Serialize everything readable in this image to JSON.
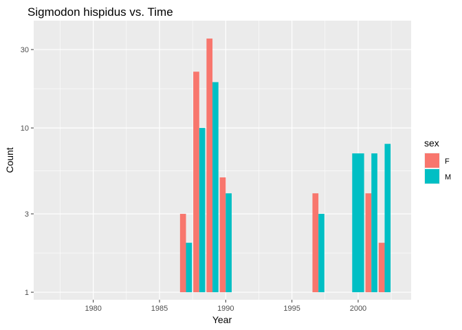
{
  "chart_data": {
    "type": "bar",
    "title": "Sigmodon hispidus vs. Time",
    "xlabel": "Year",
    "ylabel": "Count",
    "x_scale": "linear",
    "y_scale": "log10",
    "xlim": [
      1975.5,
      2004
    ],
    "ylim": [
      0.9,
      45
    ],
    "x_ticks": [
      1980,
      1985,
      1990,
      1995,
      2000
    ],
    "y_ticks": [
      1,
      3,
      10,
      30
    ],
    "grid": true,
    "background": "#EBEBEB",
    "legend": {
      "title": "sex",
      "position": "right",
      "entries": [
        {
          "label": "F",
          "color": "#F8766D"
        },
        {
          "label": "M",
          "color": "#00BFC4"
        }
      ]
    },
    "series": [
      {
        "name": "F",
        "color": "#F8766D",
        "points": [
          {
            "x": 1987,
            "y": 3
          },
          {
            "x": 1988,
            "y": 22
          },
          {
            "x": 1989,
            "y": 35
          },
          {
            "x": 1990,
            "y": 5
          },
          {
            "x": 1997,
            "y": 4
          },
          {
            "x": 2001,
            "y": 4
          },
          {
            "x": 2002,
            "y": 2
          }
        ]
      },
      {
        "name": "M",
        "color": "#00BFC4",
        "points": [
          {
            "x": 1987,
            "y": 2
          },
          {
            "x": 1988,
            "y": 10
          },
          {
            "x": 1989,
            "y": 19
          },
          {
            "x": 1990,
            "y": 4
          },
          {
            "x": 1997,
            "y": 3
          },
          {
            "x": 2000,
            "y": 7
          },
          {
            "x": 2001,
            "y": 7
          },
          {
            "x": 2002,
            "y": 8
          }
        ]
      }
    ]
  }
}
